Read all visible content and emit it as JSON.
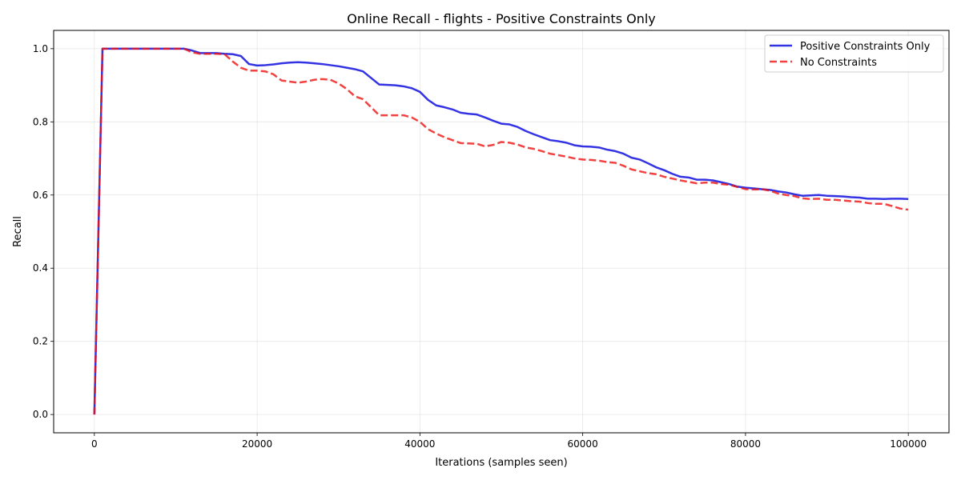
{
  "chart_data": {
    "type": "line",
    "title": "Online Recall - flights - Positive Constraints Only",
    "xlabel": "Iterations (samples seen)",
    "ylabel": "Recall",
    "xlim": [
      -5000,
      105000
    ],
    "ylim": [
      -0.05,
      1.05
    ],
    "xticks": [
      0,
      20000,
      40000,
      60000,
      80000,
      100000
    ],
    "xtick_labels": [
      "0",
      "20000",
      "40000",
      "60000",
      "80000",
      "100000"
    ],
    "yticks": [
      0.0,
      0.2,
      0.4,
      0.6,
      0.8,
      1.0
    ],
    "ytick_labels": [
      "0.0",
      "0.2",
      "0.4",
      "0.6",
      "0.8",
      "1.0"
    ],
    "grid": true,
    "legend_position": "top-right",
    "x": [
      0,
      1000,
      2000,
      3000,
      4000,
      5000,
      6000,
      7000,
      8000,
      9000,
      10000,
      11000,
      12000,
      13000,
      14000,
      15000,
      16000,
      17000,
      18000,
      19000,
      20000,
      21000,
      22000,
      23000,
      24000,
      25000,
      26000,
      27000,
      28000,
      29000,
      30000,
      31000,
      32000,
      33000,
      34000,
      35000,
      36000,
      37000,
      38000,
      39000,
      40000,
      41000,
      42000,
      43000,
      44000,
      45000,
      46000,
      47000,
      48000,
      49000,
      50000,
      51000,
      52000,
      53000,
      54000,
      55000,
      56000,
      57000,
      58000,
      59000,
      60000,
      61000,
      62000,
      63000,
      64000,
      65000,
      66000,
      67000,
      68000,
      69000,
      70000,
      71000,
      72000,
      73000,
      74000,
      75000,
      76000,
      77000,
      78000,
      79000,
      80000,
      81000,
      82000,
      83000,
      84000,
      85000,
      86000,
      87000,
      88000,
      89000,
      90000,
      91000,
      92000,
      93000,
      94000,
      95000,
      96000,
      97000,
      98000,
      99000,
      100000
    ],
    "series": [
      {
        "name": "Positive Constraints Only",
        "color": "#0000dd",
        "style": "solid",
        "values": [
          0.0,
          1.0,
          1.0,
          1.0,
          1.0,
          1.0,
          1.0,
          1.0,
          1.0,
          1.0,
          1.0,
          1.0,
          0.995,
          0.988,
          0.988,
          0.988,
          0.986,
          0.985,
          0.98,
          0.958,
          0.954,
          0.955,
          0.957,
          0.96,
          0.962,
          0.963,
          0.962,
          0.96,
          0.958,
          0.955,
          0.952,
          0.948,
          0.944,
          0.938,
          0.92,
          0.902,
          0.901,
          0.9,
          0.897,
          0.892,
          0.882,
          0.86,
          0.845,
          0.84,
          0.834,
          0.825,
          0.822,
          0.82,
          0.812,
          0.803,
          0.795,
          0.793,
          0.786,
          0.775,
          0.766,
          0.758,
          0.75,
          0.747,
          0.743,
          0.736,
          0.733,
          0.732,
          0.73,
          0.724,
          0.72,
          0.713,
          0.702,
          0.697,
          0.687,
          0.676,
          0.668,
          0.658,
          0.65,
          0.648,
          0.642,
          0.642,
          0.64,
          0.635,
          0.63,
          0.623,
          0.62,
          0.618,
          0.616,
          0.614,
          0.61,
          0.607,
          0.602,
          0.598,
          0.599,
          0.6,
          0.598,
          0.597,
          0.596,
          0.594,
          0.593,
          0.59,
          0.59,
          0.589,
          0.59,
          0.59,
          0.589
        ]
      },
      {
        "name": "No Constraints",
        "color": "#ee1111",
        "style": "dashed",
        "values": [
          0.0,
          1.0,
          1.0,
          1.0,
          1.0,
          1.0,
          1.0,
          1.0,
          1.0,
          1.0,
          1.0,
          1.0,
          0.99,
          0.986,
          0.986,
          0.986,
          0.985,
          0.965,
          0.948,
          0.94,
          0.94,
          0.938,
          0.93,
          0.913,
          0.91,
          0.907,
          0.91,
          0.915,
          0.917,
          0.915,
          0.905,
          0.89,
          0.87,
          0.862,
          0.84,
          0.818,
          0.818,
          0.818,
          0.818,
          0.812,
          0.8,
          0.78,
          0.768,
          0.758,
          0.75,
          0.742,
          0.741,
          0.74,
          0.733,
          0.737,
          0.745,
          0.743,
          0.738,
          0.73,
          0.726,
          0.72,
          0.713,
          0.709,
          0.705,
          0.7,
          0.697,
          0.696,
          0.694,
          0.69,
          0.688,
          0.68,
          0.67,
          0.665,
          0.66,
          0.657,
          0.65,
          0.645,
          0.64,
          0.636,
          0.632,
          0.634,
          0.634,
          0.63,
          0.628,
          0.622,
          0.616,
          0.615,
          0.616,
          0.612,
          0.604,
          0.6,
          0.597,
          0.591,
          0.589,
          0.59,
          0.587,
          0.587,
          0.585,
          0.583,
          0.582,
          0.578,
          0.576,
          0.576,
          0.57,
          0.563,
          0.56
        ]
      }
    ]
  }
}
